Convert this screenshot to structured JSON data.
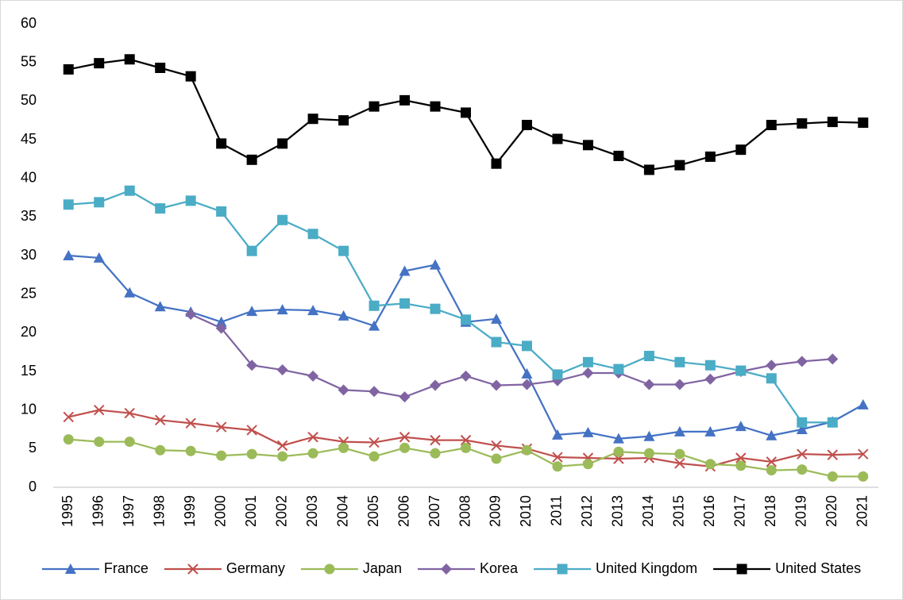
{
  "chart_data": {
    "type": "line",
    "categories": [
      "1995",
      "1996",
      "1997",
      "1998",
      "1999",
      "2000",
      "2001",
      "2002",
      "2003",
      "2004",
      "2005",
      "2006",
      "2007",
      "2008",
      "2009",
      "2010",
      "2011",
      "2012",
      "2013",
      "2014",
      "2015",
      "2016",
      "2017",
      "2018",
      "2019",
      "2020",
      "2021"
    ],
    "series": [
      {
        "name": "France",
        "color": "#4472c4",
        "marker": "triangle",
        "values": [
          30.0,
          29.7,
          25.2,
          23.4,
          22.7,
          21.4,
          22.8,
          23.0,
          22.9,
          22.2,
          20.9,
          28.0,
          28.8,
          21.4,
          21.8,
          14.7,
          6.8,
          7.1,
          6.3,
          6.6,
          7.2,
          7.2,
          7.9,
          6.7,
          7.5,
          8.5,
          10.7
        ]
      },
      {
        "name": "Germany",
        "color": "#c0504d",
        "marker": "x",
        "values": [
          9.1,
          10.0,
          9.6,
          8.7,
          8.3,
          7.8,
          7.4,
          5.4,
          6.5,
          5.9,
          5.8,
          6.5,
          6.1,
          6.1,
          5.4,
          5.0,
          3.9,
          3.8,
          3.7,
          3.8,
          3.1,
          2.7,
          3.8,
          3.3,
          4.3,
          4.2,
          4.3
        ]
      },
      {
        "name": "Japan",
        "color": "#9bbb59",
        "marker": "circle",
        "values": [
          6.2,
          5.9,
          5.9,
          4.8,
          4.7,
          4.1,
          4.3,
          4.0,
          4.4,
          5.1,
          4.0,
          5.1,
          4.4,
          5.1,
          3.7,
          4.8,
          2.7,
          3.0,
          4.6,
          4.4,
          4.3,
          3.0,
          2.8,
          2.2,
          2.3,
          1.4,
          1.4
        ]
      },
      {
        "name": "Korea",
        "color": "#8064a2",
        "marker": "diamond",
        "values": [
          null,
          null,
          null,
          null,
          22.4,
          20.6,
          15.8,
          15.2,
          14.4,
          12.6,
          12.4,
          11.7,
          13.2,
          14.4,
          13.2,
          13.3,
          13.8,
          14.8,
          14.8,
          13.3,
          13.3,
          14.0,
          15.0,
          15.8,
          16.3,
          16.6,
          null
        ]
      },
      {
        "name": "United Kingdom",
        "color": "#4bacc6",
        "marker": "square",
        "values": [
          36.6,
          36.9,
          38.4,
          36.1,
          37.1,
          35.7,
          30.6,
          34.6,
          32.8,
          30.6,
          23.5,
          23.8,
          23.1,
          21.7,
          18.8,
          18.3,
          14.6,
          16.2,
          15.3,
          17.0,
          16.2,
          15.8,
          15.1,
          14.1,
          8.4,
          8.4,
          null
        ]
      },
      {
        "name": "United States",
        "color": "#000000",
        "marker": "square",
        "values": [
          54.1,
          54.9,
          55.4,
          54.3,
          53.2,
          44.5,
          42.4,
          44.5,
          47.7,
          47.5,
          49.3,
          50.1,
          49.3,
          48.5,
          41.9,
          46.9,
          45.1,
          44.3,
          42.9,
          41.1,
          41.7,
          42.8,
          43.7,
          46.9,
          47.1,
          47.3,
          47.2
        ]
      }
    ],
    "ylim": [
      0,
      60
    ],
    "yticks": [
      0,
      5,
      10,
      15,
      20,
      25,
      30,
      35,
      40,
      45,
      50,
      55,
      60
    ],
    "grid": false,
    "legend": "bottom"
  }
}
